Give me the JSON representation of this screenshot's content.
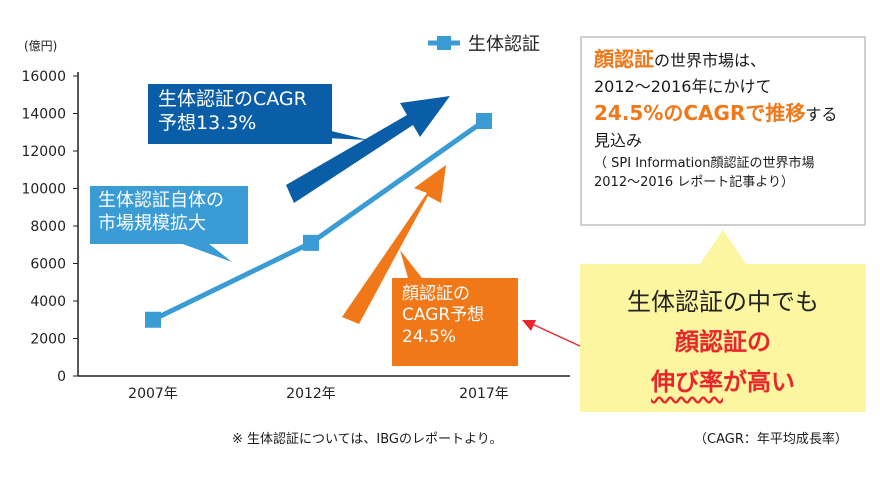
{
  "chart_data": {
    "type": "line",
    "unit_label": "(億円)",
    "categories": [
      "2007年",
      "2012年",
      "2017年"
    ],
    "series": [
      {
        "name": "生体認証",
        "values": [
          3000,
          7100,
          13600
        ],
        "color": "#3a9bd5"
      }
    ],
    "yticks": [
      "0",
      "2000",
      "4000",
      "6000",
      "8000",
      "10000",
      "12000",
      "14000",
      "16000"
    ],
    "ylim": [
      0,
      16000
    ],
    "grid": false,
    "legend_position": "top"
  },
  "callouts": {
    "overall_cagr": {
      "line1": "生体認証のCAGR",
      "line2": "予想13.3%"
    },
    "market_growth": {
      "line1": "生体認証自体の",
      "line2": "市場規模拡大"
    },
    "face_cagr": {
      "line1": "顔認証の",
      "line2": "CAGR予想",
      "line3": "24.5%"
    }
  },
  "info_box": {
    "part1": "顔認証",
    "part2": "の世界市場は、",
    "line2": "2012～2016年にかけて",
    "part3": "24.5%のCAGRで推移",
    "part4": "する",
    "line4": "見込み",
    "source1": "（ SPI Information顔認証の世界市場",
    "source2": "2012～2016 レポート記事より）"
  },
  "highlight": {
    "line1": "生体認証の中でも",
    "line2": "顔認証の",
    "line3a": "伸び率",
    "line3b": "が高い"
  },
  "footnote": "※ 生体認証については、IBGのレポートより。",
  "cagr_note": "（CAGR：年平均成長率）",
  "colors": {
    "series_blue": "#3a9bd5",
    "dark_blue": "#0a5ea8",
    "orange": "#f07818",
    "red": "#e8262b",
    "highlight_bg": "#fdf6a0"
  }
}
